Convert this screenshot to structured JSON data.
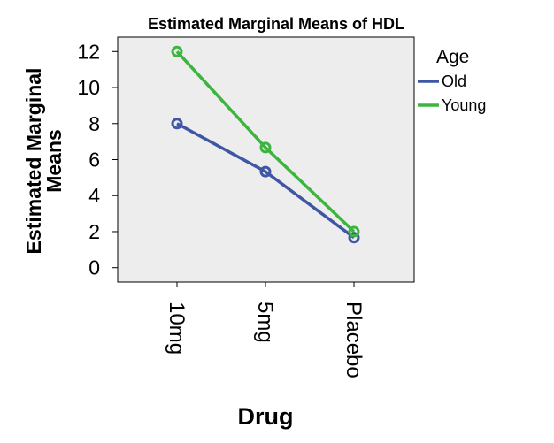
{
  "chart_data": {
    "type": "line",
    "title": "Estimated Marginal Means of HDL",
    "xlabel": "Drug",
    "ylabel": "Estimated Marginal Means",
    "ylabel_lines": [
      "Estimated Marginal",
      "Means"
    ],
    "categories": [
      "10mg",
      "5mg",
      "Placebo"
    ],
    "ylim": [
      -0.8,
      12.8
    ],
    "yticks": [
      0,
      2,
      4,
      6,
      8,
      10,
      12
    ],
    "grid": false,
    "legend": {
      "title": "Age",
      "position": "right"
    },
    "background": "#ededed",
    "series": [
      {
        "name": "Old",
        "color": "#3e56a3",
        "values": [
          8.0,
          5.33,
          1.67
        ]
      },
      {
        "name": "Young",
        "color": "#3cb53e",
        "values": [
          12.0,
          6.67,
          2.0
        ]
      }
    ]
  }
}
